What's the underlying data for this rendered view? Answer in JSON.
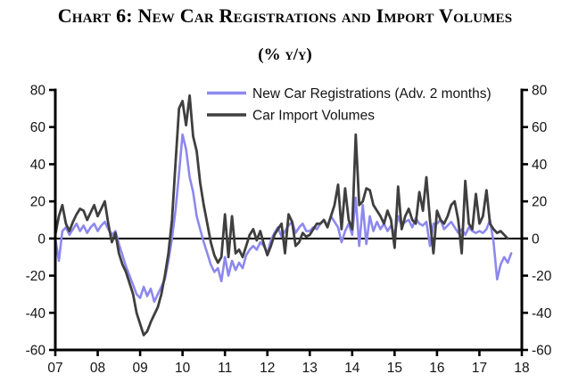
{
  "title": "Chart 6: New Car Registrations and Import Volumes",
  "subtitle": "(% y/y)",
  "chart_data": {
    "type": "line",
    "title": "Chart 6: New Car Registrations and Import Volumes",
    "subtitle": "(% y/y)",
    "x_start": "2007-01",
    "x_frequency": "monthly",
    "xticks": [
      "07",
      "08",
      "09",
      "10",
      "11",
      "12",
      "13",
      "14",
      "15",
      "16",
      "17",
      "18"
    ],
    "ylim": [
      -60,
      80
    ],
    "yticks": [
      80,
      60,
      40,
      20,
      0,
      -20,
      -40,
      -60
    ],
    "grid": false,
    "zero_line": true,
    "legend_position": "top-right-inside",
    "axis_color": "#000000",
    "series": [
      {
        "id": "new-car-registrations",
        "name": "New Car Registrations (Adv. 2 months)",
        "color": "#8d88ee",
        "values": [
          0,
          -12,
          4,
          6,
          2,
          5,
          8,
          4,
          7,
          3,
          6,
          8,
          4,
          7,
          9,
          5,
          2,
          4,
          -3,
          -9,
          -15,
          -20,
          -25,
          -30,
          -32,
          -26,
          -31,
          -27,
          -34,
          -30,
          -26,
          -22,
          -12,
          0,
          15,
          35,
          56,
          48,
          33,
          25,
          12,
          5,
          -2,
          -8,
          -14,
          -18,
          -16,
          -23,
          -10,
          -20,
          -12,
          -17,
          -13,
          -16,
          -9,
          -6,
          -4,
          -6,
          -2,
          -4,
          -8,
          -1,
          3,
          6,
          1,
          4,
          7,
          9,
          3,
          6,
          8,
          4,
          4,
          6,
          5,
          8,
          10,
          7,
          12,
          9,
          6,
          -2,
          4,
          8,
          2,
          22,
          -4,
          18,
          -3,
          12,
          4,
          9,
          5,
          8,
          4,
          7,
          2,
          12,
          7,
          9,
          10,
          6,
          11,
          8,
          7,
          9,
          -4,
          8,
          8,
          10,
          5,
          7,
          9,
          6,
          3,
          5,
          2,
          6,
          4,
          3,
          4,
          3,
          5,
          10,
          -2,
          -22,
          -14,
          -10,
          -13,
          -8
        ]
      },
      {
        "id": "car-import-volumes",
        "name": "Car Import Volumes",
        "color": "#3f3f3f",
        "values": [
          2,
          12,
          18,
          8,
          4,
          9,
          13,
          16,
          15,
          10,
          14,
          18,
          12,
          16,
          20,
          8,
          -2,
          3,
          -8,
          -14,
          -18,
          -24,
          -30,
          -40,
          -46,
          -52,
          -50,
          -45,
          -41,
          -37,
          -30,
          -20,
          -8,
          10,
          40,
          70,
          74,
          61,
          77,
          55,
          47,
          30,
          18,
          8,
          -2,
          -9,
          -13,
          -10,
          13,
          -10,
          12,
          -8,
          -6,
          -10,
          -4,
          2,
          5,
          -1,
          4,
          -3,
          -9,
          -4,
          2,
          5,
          8,
          -8,
          13,
          9,
          -4,
          -2,
          3,
          1,
          2,
          5,
          8,
          8,
          10,
          6,
          12,
          18,
          29,
          5,
          27,
          10,
          5,
          56,
          18,
          20,
          27,
          26,
          18,
          15,
          12,
          8,
          15,
          10,
          -5,
          28,
          5,
          12,
          16,
          10,
          8,
          25,
          15,
          33,
          10,
          -8,
          15,
          10,
          8,
          12,
          18,
          20,
          10,
          -8,
          31,
          8,
          5,
          24,
          8,
          12,
          26,
          8,
          5,
          3,
          4,
          2,
          0
        ]
      }
    ]
  }
}
